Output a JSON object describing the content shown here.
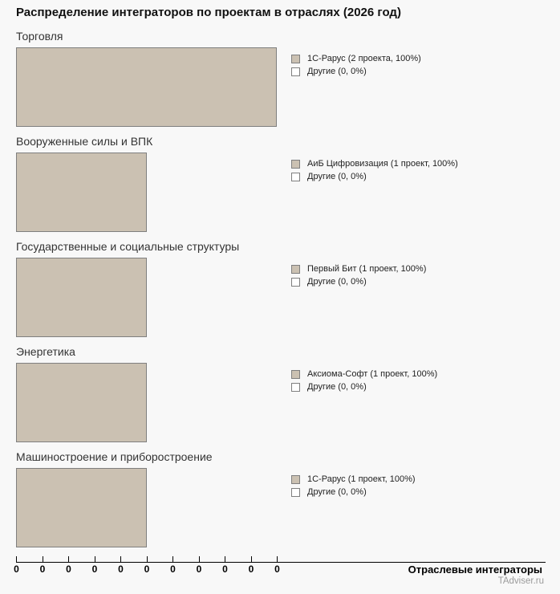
{
  "title": "Распределение интеграторов по проектам в отраслях (2026 год)",
  "colors": {
    "bar_fill": "#cbc1b2",
    "bar_border": "#7f7f7f",
    "background": "#f8f8f8",
    "others_fill": "#ffffff",
    "axis_color": "#000000",
    "watermark_color": "#9b9b9b"
  },
  "axis": {
    "range": [
      0,
      2
    ],
    "tick_labels": [
      "0",
      "0",
      "0",
      "0",
      "0",
      "0",
      "0",
      "0",
      "0",
      "0",
      "0"
    ],
    "label": "Отраслевые интеграторы"
  },
  "watermark": "TAdviser.ru",
  "chart_data": [
    {
      "type": "bar",
      "orientation": "horizontal",
      "title": "Торговля",
      "categories": [
        "1С-Рарус",
        "Другие"
      ],
      "values": [
        2,
        0
      ],
      "percents": [
        100,
        0
      ],
      "xlim": [
        0,
        2
      ],
      "series": [
        {
          "name": "1С-Рарус",
          "projects": 2,
          "percent": 100,
          "label": "1С-Рарус (2 проекта, 100%)"
        },
        {
          "name": "Другие",
          "projects": 0,
          "percent": 0,
          "label": "Другие (0, 0%)"
        }
      ]
    },
    {
      "type": "bar",
      "orientation": "horizontal",
      "title": "Вооруженные силы и ВПК",
      "categories": [
        "АиБ Цифровизация",
        "Другие"
      ],
      "values": [
        1,
        0
      ],
      "percents": [
        100,
        0
      ],
      "xlim": [
        0,
        2
      ],
      "series": [
        {
          "name": "АиБ Цифровизация",
          "projects": 1,
          "percent": 100,
          "label": "АиБ Цифровизация (1 проект, 100%)"
        },
        {
          "name": "Другие",
          "projects": 0,
          "percent": 0,
          "label": "Другие (0, 0%)"
        }
      ]
    },
    {
      "type": "bar",
      "orientation": "horizontal",
      "title": "Государственные и социальные структуры",
      "categories": [
        "Первый Бит",
        "Другие"
      ],
      "values": [
        1,
        0
      ],
      "percents": [
        100,
        0
      ],
      "xlim": [
        0,
        2
      ],
      "series": [
        {
          "name": "Первый Бит",
          "projects": 1,
          "percent": 100,
          "label": "Первый Бит (1 проект, 100%)"
        },
        {
          "name": "Другие",
          "projects": 0,
          "percent": 0,
          "label": "Другие (0, 0%)"
        }
      ]
    },
    {
      "type": "bar",
      "orientation": "horizontal",
      "title": "Энергетика",
      "categories": [
        "Аксиома-Софт",
        "Другие"
      ],
      "values": [
        1,
        0
      ],
      "percents": [
        100,
        0
      ],
      "xlim": [
        0,
        2
      ],
      "series": [
        {
          "name": "Аксиома-Софт",
          "projects": 1,
          "percent": 100,
          "label": "Аксиома-Софт (1 проект, 100%)"
        },
        {
          "name": "Другие",
          "projects": 0,
          "percent": 0,
          "label": "Другие (0, 0%)"
        }
      ]
    },
    {
      "type": "bar",
      "orientation": "horizontal",
      "title": "Машиностроение и приборостроение",
      "categories": [
        "1С-Рарус",
        "Другие"
      ],
      "values": [
        1,
        0
      ],
      "percents": [
        100,
        0
      ],
      "xlim": [
        0,
        2
      ],
      "series": [
        {
          "name": "1С-Рарус",
          "projects": 1,
          "percent": 100,
          "label": "1С-Рарус (1 проект, 100%)"
        },
        {
          "name": "Другие",
          "projects": 0,
          "percent": 0,
          "label": "Другие (0, 0%)"
        }
      ]
    }
  ]
}
